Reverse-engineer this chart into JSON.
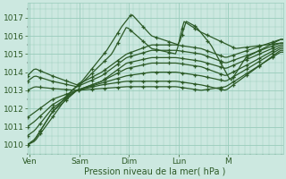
{
  "xlabel": "Pression niveau de la mer( hPa )",
  "ylim": [
    1009.5,
    1017.8
  ],
  "yticks": [
    1010,
    1011,
    1012,
    1013,
    1014,
    1015,
    1016,
    1017
  ],
  "xlim": [
    0.0,
    5.15
  ],
  "xtick_positions": [
    0.05,
    1.05,
    2.05,
    3.05,
    4.05
  ],
  "xtick_labels": [
    "Ven",
    "Sam",
    "Dim",
    "Lun",
    "M"
  ],
  "bg_color": "#cce8e0",
  "grid_color": "#99ccbb",
  "line_color": "#2d5a27",
  "figwidth": 3.2,
  "figheight": 2.0,
  "dpi": 100
}
